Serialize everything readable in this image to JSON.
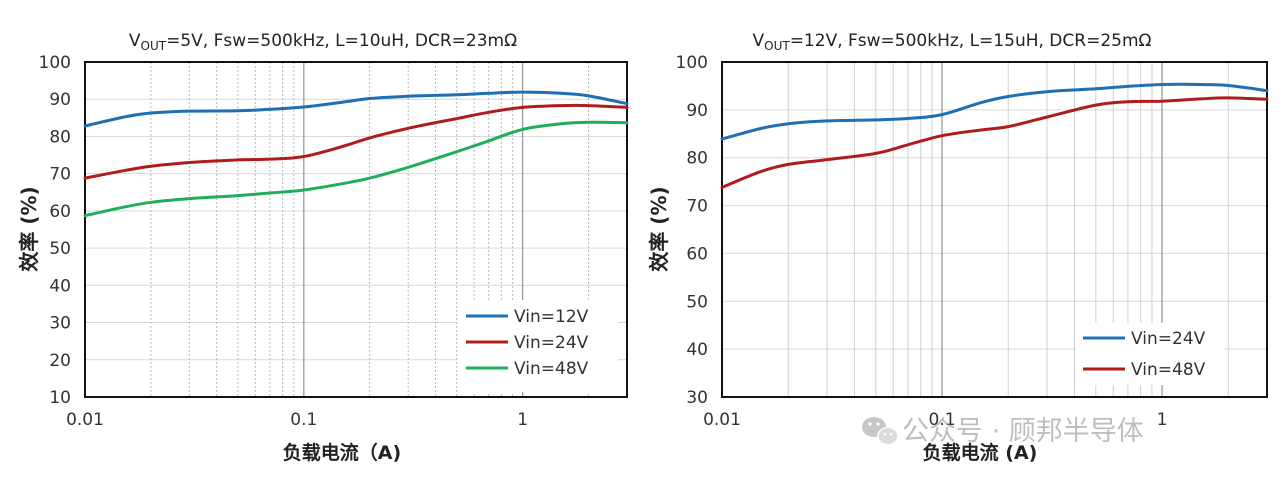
{
  "watermark": "公众号 · 顾邦半导体",
  "chart_data": [
    {
      "type": "line",
      "title": {
        "v": "V",
        "sub": "OUT",
        "rest": "=5V, Fsw=500kHz, L=10uH, DCR=23mΩ"
      },
      "xlabel": "负载电流（A)",
      "ylabel": "效率 (%)",
      "xscale": "log",
      "xlim": [
        0.01,
        3
      ],
      "ylim": [
        10,
        100
      ],
      "yticks": [
        10,
        20,
        30,
        40,
        50,
        60,
        70,
        80,
        90,
        100
      ],
      "xticks": [
        {
          "value": 0.01,
          "label": "0.01"
        },
        {
          "value": 0.1,
          "label": "0.1"
        },
        {
          "value": 1,
          "label": "1"
        }
      ],
      "legend_position": "bottom-right",
      "series": [
        {
          "name": "Vin=12V",
          "color": "#1F6FB4",
          "x": [
            0.01,
            0.015,
            0.02,
            0.03,
            0.05,
            0.07,
            0.1,
            0.15,
            0.2,
            0.3,
            0.5,
            0.7,
            1,
            1.5,
            2,
            3
          ],
          "y": [
            82.8,
            85.2,
            86.3,
            86.8,
            86.9,
            87.3,
            87.9,
            89.2,
            90.2,
            90.8,
            91.2,
            91.6,
            91.9,
            91.6,
            90.9,
            88.8
          ]
        },
        {
          "name": "Vin=24V",
          "color": "#B01C1C",
          "x": [
            0.01,
            0.015,
            0.02,
            0.03,
            0.05,
            0.07,
            0.1,
            0.15,
            0.2,
            0.3,
            0.5,
            0.7,
            1,
            1.5,
            2,
            3
          ],
          "y": [
            68.8,
            70.8,
            72.0,
            73.0,
            73.7,
            73.9,
            74.6,
            77.3,
            79.6,
            82.2,
            84.8,
            86.5,
            87.8,
            88.3,
            88.3,
            87.8
          ]
        },
        {
          "name": "Vin=48V",
          "color": "#1FAE5A",
          "x": [
            0.01,
            0.015,
            0.02,
            0.03,
            0.05,
            0.07,
            0.1,
            0.15,
            0.2,
            0.3,
            0.5,
            0.7,
            1,
            1.5,
            2,
            3
          ],
          "y": [
            58.7,
            61.0,
            62.3,
            63.3,
            64.1,
            64.8,
            65.6,
            67.3,
            68.8,
            71.7,
            75.9,
            78.8,
            81.9,
            83.4,
            83.8,
            83.7
          ]
        }
      ]
    },
    {
      "type": "line",
      "title": {
        "v": "V",
        "sub": "OUT",
        "rest": "=12V, Fsw=500kHz, L=15uH, DCR=25mΩ"
      },
      "xlabel": "负载电流 (A)",
      "ylabel": "效率 (%)",
      "xscale": "log",
      "xlim": [
        0.01,
        3
      ],
      "ylim": [
        30,
        100
      ],
      "yticks": [
        30,
        40,
        50,
        60,
        70,
        80,
        90,
        100
      ],
      "xticks": [
        {
          "value": 0.01,
          "label": "0.01"
        },
        {
          "value": 0.1,
          "label": "0.1"
        },
        {
          "value": 1,
          "label": "1"
        }
      ],
      "legend_position": "bottom-right",
      "series": [
        {
          "name": "Vin=24V",
          "color": "#1F6FB4",
          "x": [
            0.01,
            0.015,
            0.02,
            0.03,
            0.05,
            0.07,
            0.1,
            0.15,
            0.2,
            0.3,
            0.5,
            0.7,
            1,
            1.5,
            2,
            3
          ],
          "y": [
            83.9,
            86.1,
            87.1,
            87.7,
            87.9,
            88.2,
            89.0,
            91.5,
            92.8,
            93.8,
            94.4,
            94.9,
            95.3,
            95.3,
            95.1,
            94.0
          ]
        },
        {
          "name": "Vin=48V",
          "color": "#B01C1C",
          "x": [
            0.01,
            0.015,
            0.02,
            0.03,
            0.05,
            0.07,
            0.1,
            0.15,
            0.2,
            0.3,
            0.5,
            0.7,
            1,
            1.5,
            2,
            3
          ],
          "y": [
            73.8,
            77.1,
            78.6,
            79.6,
            80.9,
            82.7,
            84.6,
            85.8,
            86.5,
            88.5,
            91.0,
            91.7,
            91.8,
            92.3,
            92.5,
            92.2
          ]
        }
      ]
    }
  ]
}
